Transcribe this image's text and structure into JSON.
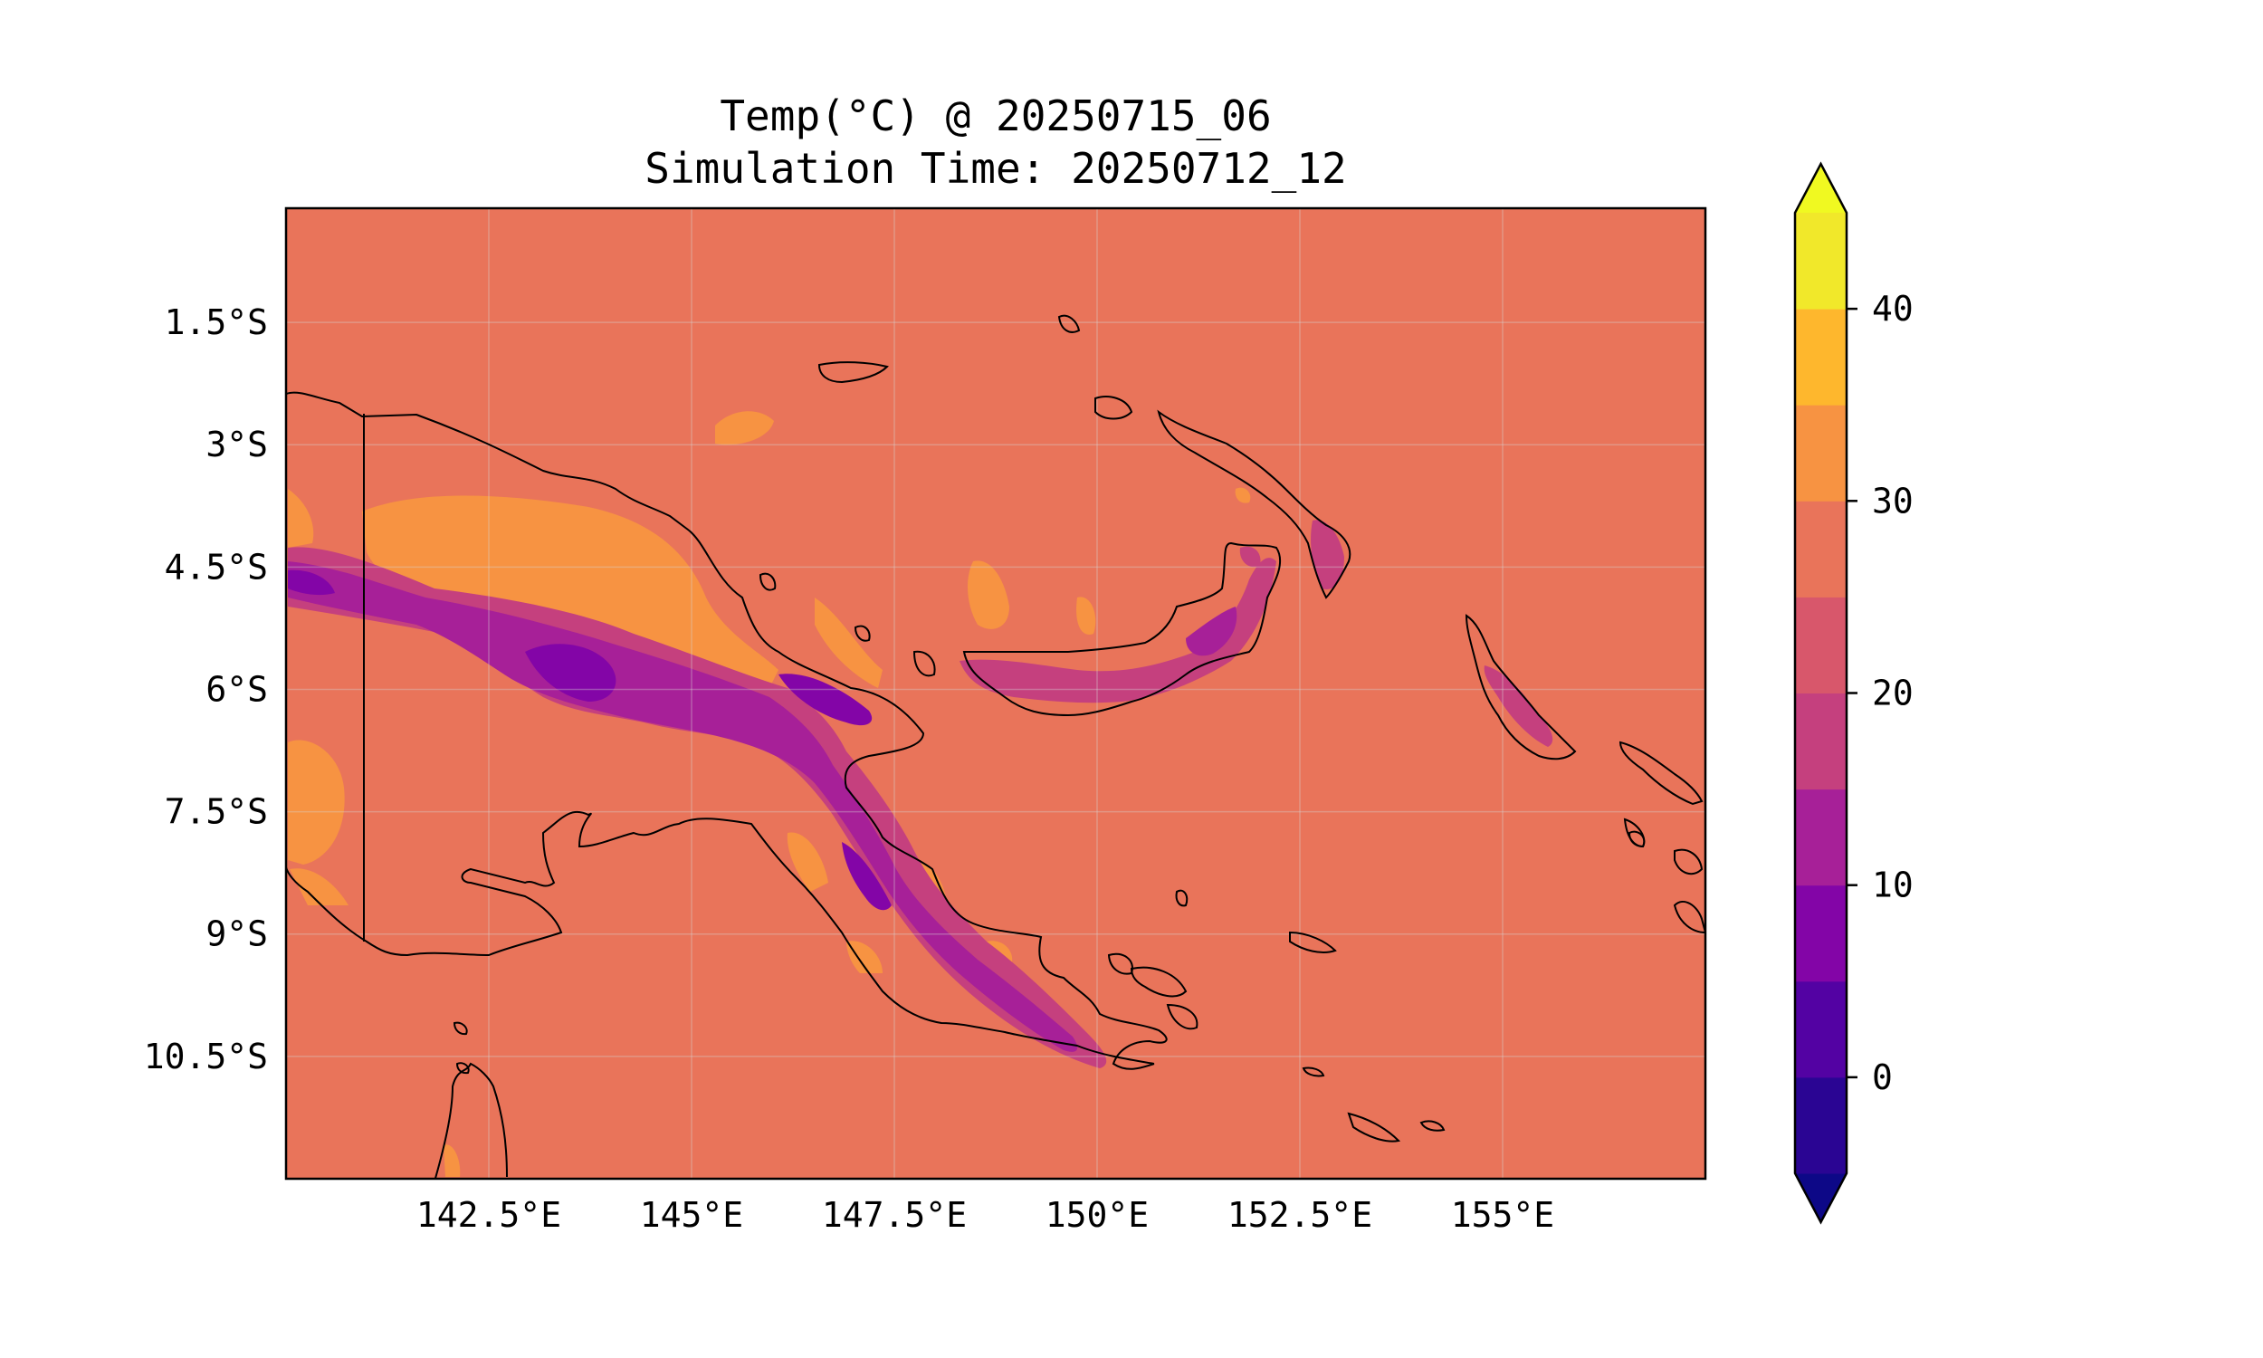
{
  "title_line1": "Temp(°C) @ 20250715_06",
  "title_line2": "Simulation Time: 20250712_12",
  "map": {
    "lon_range": [
      140.0,
      157.5
    ],
    "lat_range": [
      -12.0,
      -0.1
    ],
    "background_color": "#E9745A",
    "lat_ticks": [
      {
        "value": -1.5,
        "label": "1.5°S"
      },
      {
        "value": -3.0,
        "label": "3°S"
      },
      {
        "value": -4.5,
        "label": "4.5°S"
      },
      {
        "value": -6.0,
        "label": "6°S"
      },
      {
        "value": -7.5,
        "label": "7.5°S"
      },
      {
        "value": -9.0,
        "label": "9°S"
      },
      {
        "value": -10.5,
        "label": "10.5°S"
      }
    ],
    "lon_ticks": [
      {
        "value": 142.5,
        "label": "142.5°E"
      },
      {
        "value": 145.0,
        "label": "145°E"
      },
      {
        "value": 147.5,
        "label": "147.5°E"
      },
      {
        "value": 150.0,
        "label": "150°E"
      },
      {
        "value": 152.5,
        "label": "152.5°E"
      },
      {
        "value": 155.0,
        "label": "155°E"
      }
    ],
    "gridlines": true
  },
  "colorbar": {
    "levels": [
      -5,
      0,
      5,
      10,
      15,
      20,
      25,
      30,
      35,
      40,
      45
    ],
    "colors": [
      "#2A0593",
      "#5302A3",
      "#8305A7",
      "#A72098",
      "#C5407E",
      "#D8576B",
      "#E9745A",
      "#F79342",
      "#FEB72D",
      "#F1E82A"
    ],
    "extend_low_color": "#0D0887",
    "extend_high_color": "#F0F921",
    "ticks": [
      {
        "value": 0,
        "label": "0"
      },
      {
        "value": 10,
        "label": "10"
      },
      {
        "value": 20,
        "label": "20"
      },
      {
        "value": 30,
        "label": "30"
      },
      {
        "value": 40,
        "label": "40"
      }
    ]
  }
}
